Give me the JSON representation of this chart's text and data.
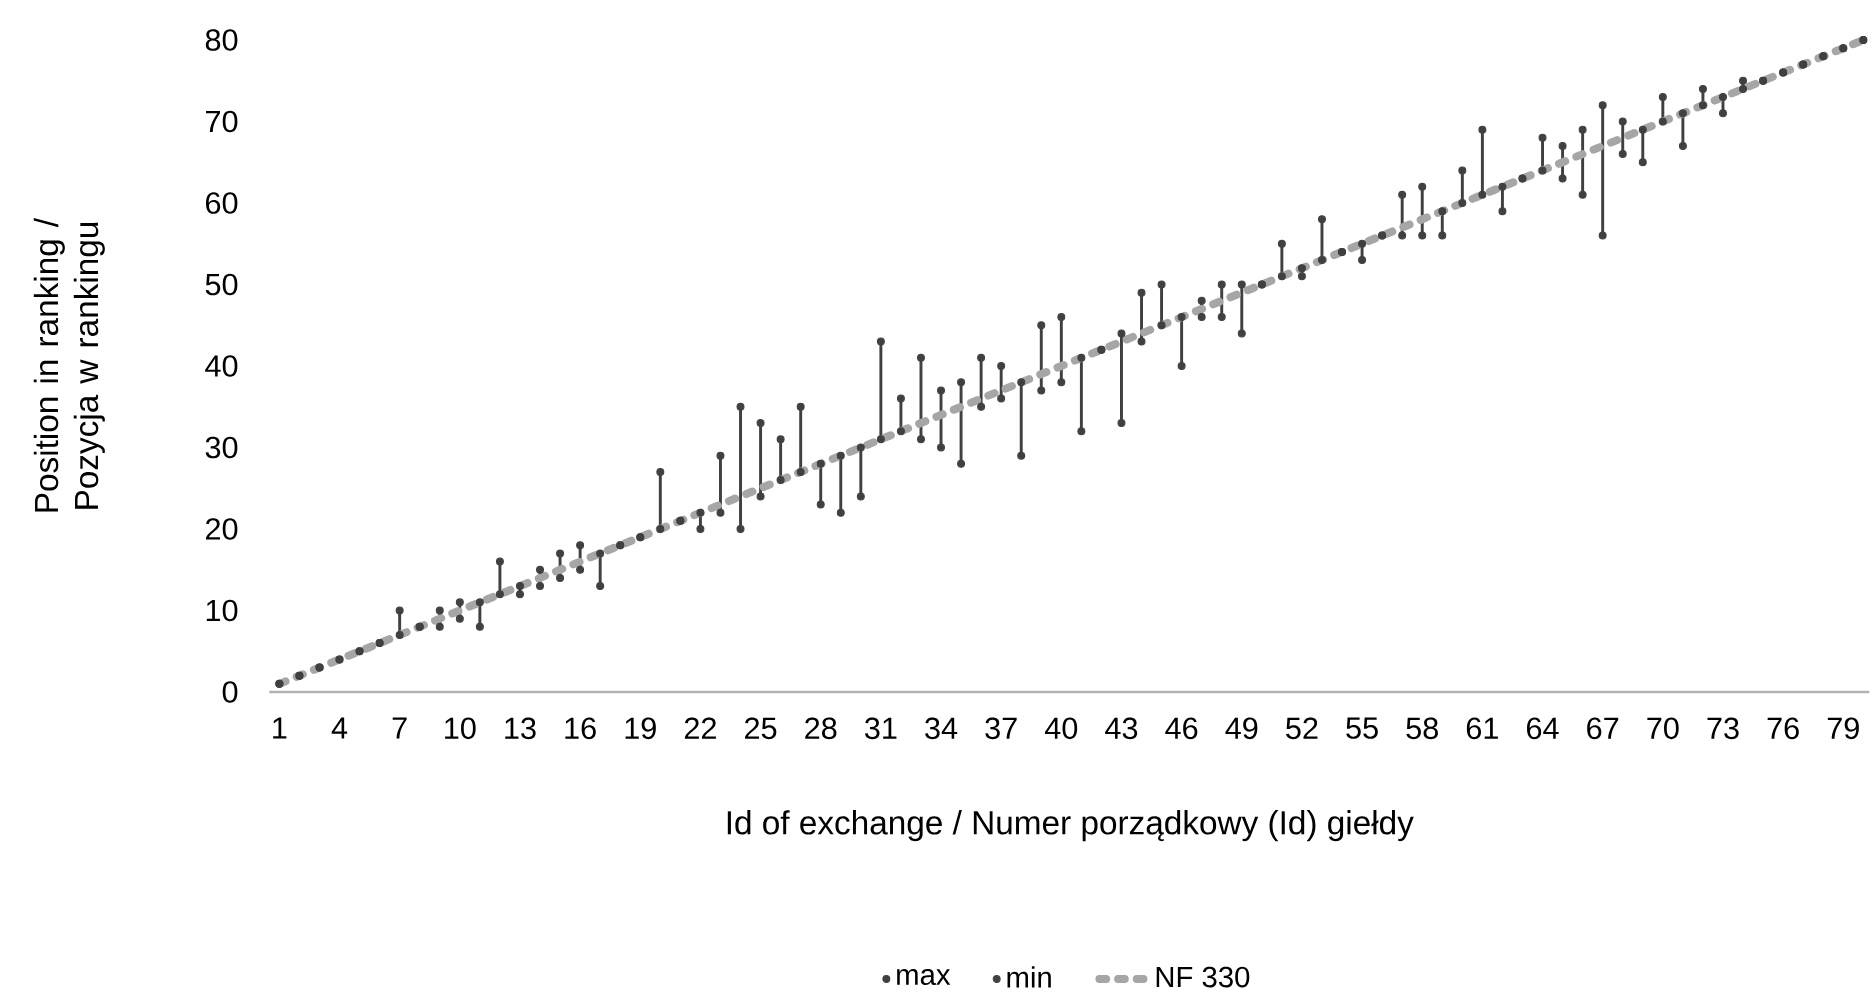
{
  "chart_data": {
    "type": "line",
    "xlabel": "Id of exchange / Numer porządkowy (Id) giełdy",
    "ylabel": "Position in ranking / Pozycja w rankingu",
    "categories": [
      "1",
      null,
      null,
      "4",
      null,
      null,
      "7",
      null,
      null,
      "10",
      null,
      null,
      "13",
      null,
      null,
      "16",
      null,
      null,
      "19",
      null,
      null,
      "22",
      null,
      null,
      "25",
      null,
      null,
      "28",
      null,
      null,
      "31",
      null,
      null,
      "34",
      null,
      null,
      "37",
      null,
      null,
      "40",
      null,
      null,
      "43",
      null,
      null,
      "46",
      null,
      null,
      "49",
      null,
      null,
      "52",
      null,
      null,
      "55",
      null,
      null,
      "58",
      null,
      null,
      "61",
      null,
      null,
      "64",
      null,
      null,
      "67",
      null,
      null,
      "70",
      null,
      null,
      "73",
      null,
      null,
      "76",
      null,
      null,
      "79",
      null
    ],
    "ylim": [
      0,
      80
    ],
    "yticks": [
      0,
      10,
      20,
      30,
      40,
      50,
      60,
      70,
      80
    ],
    "legend": "bottom",
    "series": [
      {
        "name": "max",
        "type": "scatter",
        "marker": "circle",
        "color": "#404040",
        "values": [
          1,
          2,
          3,
          4,
          5,
          6,
          10,
          8,
          10,
          11,
          11,
          16,
          13,
          15,
          17,
          18,
          17,
          18,
          19,
          27,
          21,
          22,
          29,
          35,
          33,
          31,
          35,
          28,
          29,
          30,
          43,
          36,
          41,
          37,
          38,
          41,
          40,
          38,
          45,
          46,
          41,
          42,
          44,
          49,
          50,
          46,
          48,
          50,
          50,
          50,
          55,
          52,
          58,
          54,
          55,
          56,
          61,
          62,
          59,
          64,
          69,
          62,
          63,
          68,
          67,
          69,
          72,
          70,
          69,
          73,
          71,
          74,
          73,
          75,
          75,
          76,
          77,
          78,
          79,
          80
        ]
      },
      {
        "name": "min",
        "type": "scatter",
        "marker": "circle",
        "color": "#404040",
        "values": [
          1,
          2,
          3,
          4,
          5,
          6,
          7,
          8,
          8,
          9,
          8,
          12,
          12,
          13,
          14,
          15,
          13,
          18,
          19,
          20,
          21,
          20,
          22,
          20,
          24,
          26,
          27,
          23,
          22,
          24,
          31,
          32,
          31,
          30,
          28,
          35,
          36,
          29,
          37,
          38,
          32,
          42,
          33,
          43,
          45,
          40,
          46,
          46,
          44,
          50,
          51,
          51,
          53,
          54,
          53,
          56,
          56,
          56,
          56,
          60,
          61,
          59,
          63,
          64,
          63,
          61,
          56,
          66,
          65,
          70,
          67,
          72,
          71,
          74,
          75,
          76,
          77,
          78,
          79,
          80
        ]
      },
      {
        "name": "NF 330",
        "type": "line",
        "line_style": "dashed",
        "color": "#A6A6A6",
        "values": [
          1,
          2,
          3,
          4,
          5,
          6,
          7,
          8,
          9,
          10,
          11,
          12,
          13,
          14,
          15,
          16,
          17,
          18,
          19,
          20,
          21,
          22,
          23,
          24,
          25,
          26,
          27,
          28,
          29,
          30,
          31,
          32,
          33,
          34,
          35,
          36,
          37,
          38,
          39,
          40,
          41,
          42,
          43,
          44,
          45,
          46,
          47,
          48,
          49,
          50,
          51,
          52,
          53,
          54,
          55,
          56,
          57,
          58,
          59,
          60,
          61,
          62,
          63,
          64,
          65,
          66,
          67,
          68,
          69,
          70,
          71,
          72,
          73,
          74,
          75,
          76,
          77,
          78,
          79,
          80
        ]
      }
    ]
  }
}
